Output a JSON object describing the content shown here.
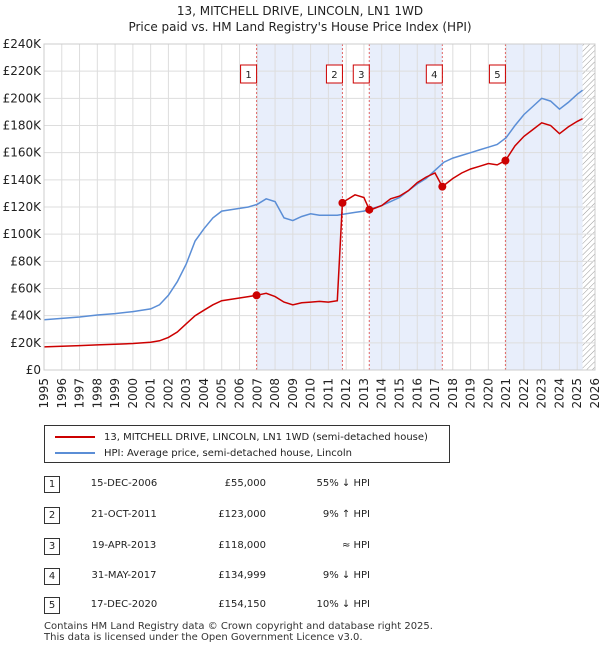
{
  "chart_data": {
    "type": "line",
    "title": "13, MITCHELL DRIVE, LINCOLN, LN1 1WD",
    "subtitle": "Price paid vs. HM Land Registry's House Price Index (HPI)",
    "xlabel": "",
    "ylabel": "",
    "xlim": [
      1995,
      2026
    ],
    "ylim": [
      0,
      240000
    ],
    "x_ticks": [
      "1995",
      "1996",
      "1997",
      "1998",
      "1999",
      "2000",
      "2001",
      "2002",
      "2003",
      "2004",
      "2005",
      "2006",
      "2007",
      "2008",
      "2009",
      "2010",
      "2011",
      "2012",
      "2013",
      "2014",
      "2015",
      "2016",
      "2017",
      "2018",
      "2019",
      "2020",
      "2021",
      "2022",
      "2023",
      "2024",
      "2025",
      "2026"
    ],
    "y_ticks": [
      "£0",
      "£20K",
      "£40K",
      "£60K",
      "£80K",
      "£100K",
      "£120K",
      "£140K",
      "£160K",
      "£180K",
      "£200K",
      "£220K",
      "£240K"
    ],
    "y_tick_values": [
      0,
      20000,
      40000,
      60000,
      80000,
      100000,
      120000,
      140000,
      160000,
      180000,
      200000,
      220000,
      240000
    ],
    "series": [
      {
        "name": "13, MITCHELL DRIVE, LINCOLN, LN1 1WD (semi-detached house)",
        "color": "#cc0000",
        "x": [
          1995.0,
          1996.0,
          1997.0,
          1998.0,
          1999.0,
          2000.0,
          2001.0,
          2001.5,
          2002.0,
          2002.5,
          2003.0,
          2003.5,
          2004.0,
          2004.5,
          2005.0,
          2005.5,
          2006.0,
          2006.5,
          2006.96,
          2007.5,
          2008.0,
          2008.5,
          2009.0,
          2009.5,
          2010.0,
          2010.5,
          2011.0,
          2011.5,
          2011.79,
          2012.0,
          2012.5,
          2013.0,
          2013.3,
          2013.5,
          2014.0,
          2014.5,
          2015.0,
          2015.5,
          2016.0,
          2016.5,
          2017.0,
          2017.41,
          2018.0,
          2018.5,
          2019.0,
          2019.5,
          2020.0,
          2020.5,
          2020.96,
          2021.5,
          2022.0,
          2022.5,
          2023.0,
          2023.5,
          2024.0,
          2024.5,
          2025.0,
          2025.3
        ],
        "y": [
          17000,
          17500,
          18000,
          18500,
          19000,
          19500,
          20500,
          21500,
          24000,
          28000,
          34000,
          40000,
          44000,
          48000,
          51000,
          52000,
          53000,
          54000,
          55000,
          56500,
          54000,
          50000,
          48000,
          49500,
          50000,
          50500,
          50000,
          51000,
          123000,
          125000,
          129000,
          127000,
          118000,
          118500,
          121000,
          126000,
          128000,
          132000,
          138000,
          142000,
          145000,
          134999,
          141000,
          145000,
          148000,
          150000,
          152000,
          151000,
          154150,
          165000,
          172000,
          177000,
          182000,
          180000,
          174000,
          179000,
          183000,
          185000
        ]
      },
      {
        "name": "HPI: Average price, semi-detached house, Lincoln",
        "color": "#5b8ed6",
        "x": [
          1995.0,
          1996.0,
          1997.0,
          1998.0,
          1999.0,
          2000.0,
          2001.0,
          2001.5,
          2002.0,
          2002.5,
          2003.0,
          2003.5,
          2004.0,
          2004.5,
          2005.0,
          2005.5,
          2006.0,
          2006.5,
          2007.0,
          2007.5,
          2008.0,
          2008.5,
          2009.0,
          2009.5,
          2010.0,
          2010.5,
          2011.0,
          2011.5,
          2012.0,
          2012.5,
          2013.0,
          2013.5,
          2014.0,
          2014.5,
          2015.0,
          2015.5,
          2016.0,
          2016.5,
          2017.0,
          2017.5,
          2018.0,
          2018.5,
          2019.0,
          2019.5,
          2020.0,
          2020.5,
          2021.0,
          2021.5,
          2022.0,
          2022.5,
          2023.0,
          2023.5,
          2024.0,
          2024.5,
          2025.0,
          2025.3
        ],
        "y": [
          37000,
          38000,
          39000,
          40500,
          41500,
          43000,
          45000,
          48000,
          55000,
          65000,
          78000,
          95000,
          104000,
          112000,
          117000,
          118000,
          119000,
          120000,
          122000,
          126000,
          124000,
          112000,
          110000,
          113000,
          115000,
          114000,
          114000,
          114000,
          115000,
          116000,
          117000,
          119000,
          121000,
          124000,
          127000,
          132000,
          137000,
          141000,
          147000,
          153000,
          156000,
          158000,
          160000,
          162000,
          164000,
          166000,
          171000,
          180000,
          188000,
          194000,
          200000,
          198000,
          192000,
          197000,
          203000,
          206000
        ]
      }
    ],
    "sales": [
      {
        "num": "1",
        "x": 2006.96,
        "y": 55000
      },
      {
        "num": "2",
        "x": 2011.79,
        "y": 123000
      },
      {
        "num": "3",
        "x": 2013.3,
        "y": 118000
      },
      {
        "num": "4",
        "x": 2017.41,
        "y": 134999
      },
      {
        "num": "5",
        "x": 2020.96,
        "y": 154150
      }
    ],
    "shaded_periods": [
      [
        2006.96,
        2011.79
      ],
      [
        2013.3,
        2017.41
      ],
      [
        2020.96,
        2025.3
      ]
    ],
    "hatch_from": 2025.3
  },
  "transactions": [
    {
      "num": "1",
      "date": "15-DEC-2006",
      "price": "£55,000",
      "relation": "55% ↓ HPI"
    },
    {
      "num": "2",
      "date": "21-OCT-2011",
      "price": "£123,000",
      "relation": "9% ↑ HPI"
    },
    {
      "num": "3",
      "date": "19-APR-2013",
      "price": "£118,000",
      "relation": "≈ HPI"
    },
    {
      "num": "4",
      "date": "31-MAY-2017",
      "price": "£134,999",
      "relation": "9% ↓ HPI"
    },
    {
      "num": "5",
      "date": "17-DEC-2020",
      "price": "£154,150",
      "relation": "10% ↓ HPI"
    }
  ],
  "footer": {
    "line1": "Contains HM Land Registry data © Crown copyright and database right 2025.",
    "line2": "This data is licensed under the Open Government Licence v3.0."
  }
}
